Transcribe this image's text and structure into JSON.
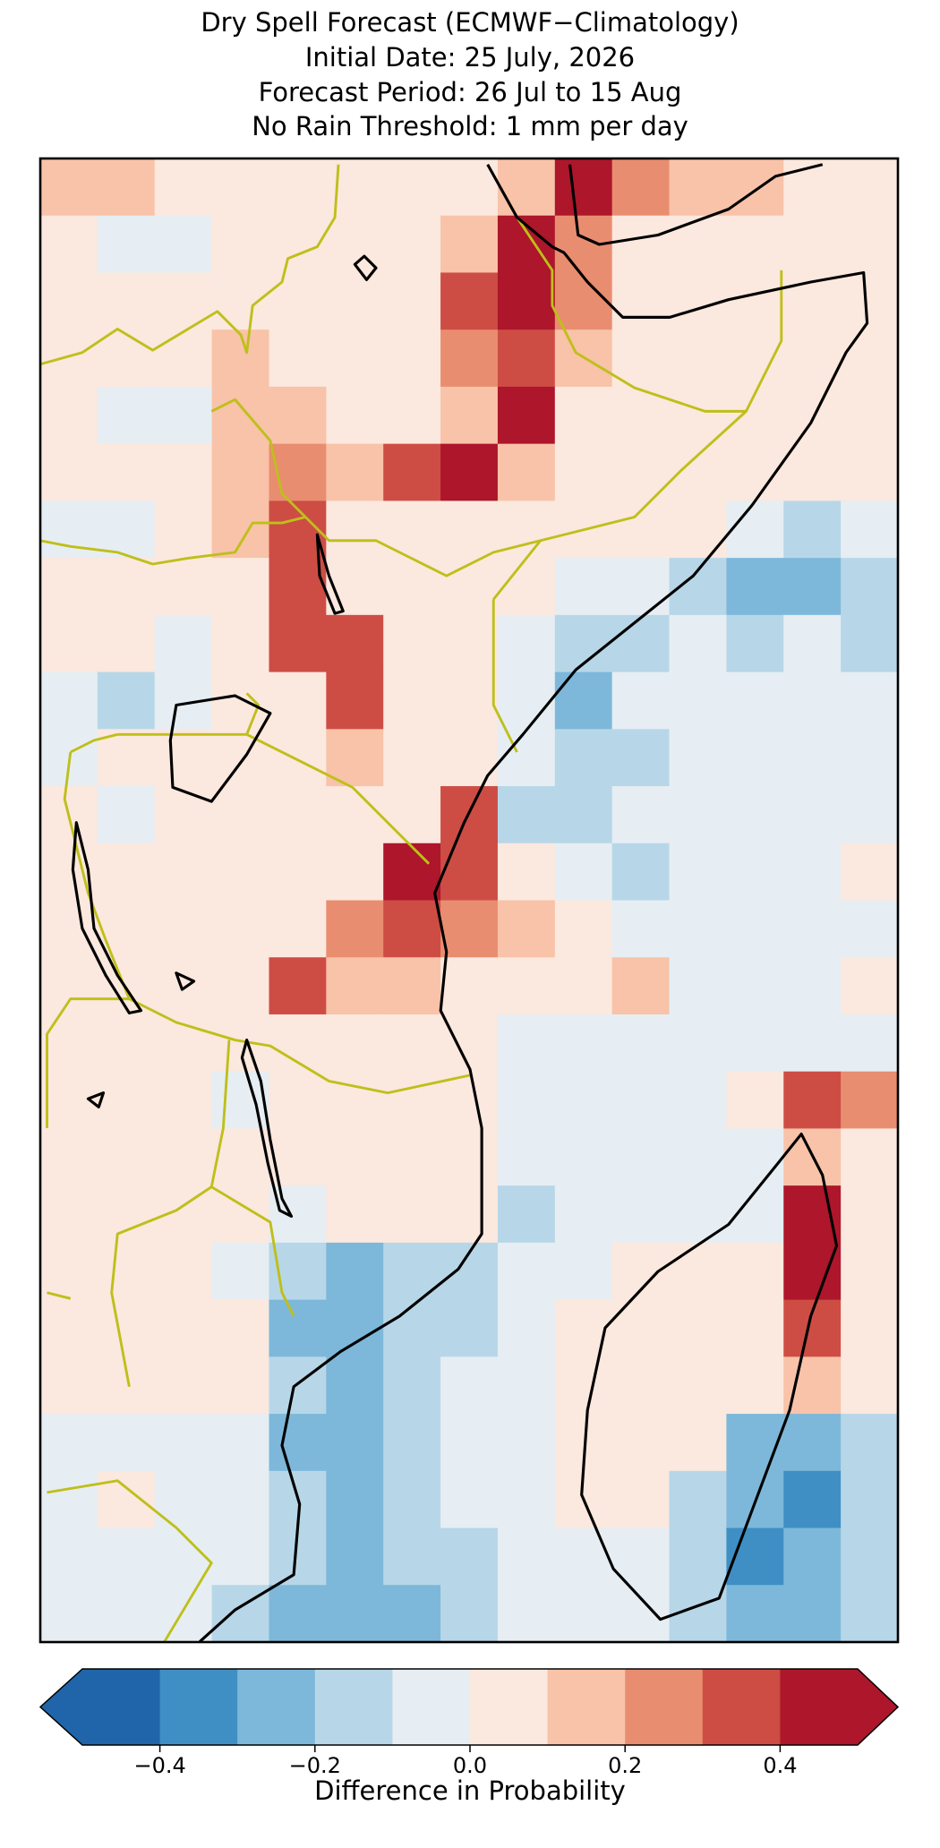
{
  "chart_data": {
    "type": "heatmap",
    "title": "Dry Spell Forecast (ECMWF−Climatology)",
    "subtitle": [
      "Initial Date: 25 July, 2026",
      "Forecast Period: 26 Jul to 15 Aug",
      "No Rain Threshold: 1 mm per day"
    ],
    "colorbar_label": "Difference in Probability",
    "extend": "both",
    "color_bounds": [
      -0.5,
      -0.4,
      -0.3,
      -0.2,
      -0.1,
      0,
      0.1,
      0.2,
      0.3,
      0.4,
      0.5
    ],
    "colors": [
      "#2065aa",
      "#3f8fc4",
      "#7db8da",
      "#b7d7e8",
      "#e6eef3",
      "#fbe8de",
      "#f8c3a8",
      "#e98d70",
      "#cd4d45",
      "#ad162b"
    ],
    "cticks": [
      {
        "value": -0.4,
        "label": "−0.4"
      },
      {
        "value": -0.2,
        "label": "−0.2"
      },
      {
        "value": 0,
        "label": "0.0"
      },
      0.2,
      0.4
    ],
    "values": [
      [
        0.15,
        0.15,
        0.05,
        0.05,
        0.05,
        0.05,
        0.05,
        0.05,
        0.15,
        0.45,
        0.25,
        0.15,
        0.15,
        0.05,
        0.05
      ],
      [
        0.05,
        -0.05,
        -0.05,
        0.05,
        0.05,
        0.05,
        0.05,
        0.15,
        0.45,
        0.25,
        0.05,
        0.05,
        0.05,
        0.05,
        0.05
      ],
      [
        0.05,
        0.05,
        0.05,
        0.05,
        0.05,
        0.05,
        0.05,
        0.35,
        0.45,
        0.25,
        0.05,
        0.05,
        0.05,
        0.05,
        0.05
      ],
      [
        0.05,
        0.05,
        0.05,
        0.15,
        0.05,
        0.05,
        0.05,
        0.25,
        0.35,
        0.15,
        0.05,
        0.05,
        0.05,
        0.05,
        0.05
      ],
      [
        0.05,
        -0.05,
        -0.05,
        0.15,
        0.15,
        0.05,
        0.05,
        0.15,
        0.45,
        0.05,
        0.05,
        0.05,
        0.05,
        0.05,
        0.05
      ],
      [
        0.05,
        0.05,
        0.05,
        0.15,
        0.25,
        0.15,
        0.35,
        0.45,
        0.15,
        0.05,
        0.05,
        0.05,
        0.05,
        0.05,
        0.05
      ],
      [
        -0.05,
        -0.05,
        0.05,
        0.15,
        0.35,
        0.05,
        0.05,
        0.05,
        0.05,
        0.05,
        0.05,
        0.05,
        -0.05,
        -0.15,
        -0.05
      ],
      [
        0.05,
        0.05,
        0.05,
        0.05,
        0.35,
        0.05,
        0.05,
        0.05,
        0.05,
        -0.05,
        -0.05,
        -0.15,
        -0.25,
        -0.25,
        -0.15
      ],
      [
        0.05,
        0.05,
        -0.05,
        0.05,
        0.35,
        0.35,
        0.05,
        0.05,
        -0.05,
        -0.15,
        -0.15,
        -0.05,
        -0.15,
        -0.05,
        -0.15
      ],
      [
        -0.05,
        -0.15,
        -0.05,
        0.05,
        0.05,
        0.35,
        0.05,
        0.05,
        -0.05,
        -0.25,
        -0.05,
        -0.05,
        -0.05,
        -0.05,
        -0.05
      ],
      [
        -0.05,
        0.05,
        0.05,
        0.05,
        0.05,
        0.15,
        0.05,
        0.05,
        -0.05,
        -0.15,
        -0.15,
        -0.05,
        -0.05,
        -0.05,
        -0.05
      ],
      [
        0.05,
        -0.05,
        0.05,
        0.05,
        0.05,
        0.05,
        0.05,
        0.35,
        -0.15,
        -0.15,
        -0.05,
        -0.05,
        -0.05,
        -0.05,
        -0.05
      ],
      [
        0.05,
        0.05,
        0.05,
        0.05,
        0.05,
        0.05,
        0.45,
        0.35,
        0.05,
        -0.05,
        -0.15,
        -0.05,
        -0.05,
        -0.05,
        0.05
      ],
      [
        0.05,
        0.05,
        0.05,
        0.05,
        0.05,
        0.25,
        0.35,
        0.25,
        0.15,
        0.05,
        -0.05,
        -0.05,
        -0.05,
        -0.05,
        -0.05
      ],
      [
        0.05,
        0.05,
        0.05,
        0.05,
        0.35,
        0.15,
        0.15,
        0.05,
        0.05,
        0.05,
        0.15,
        -0.05,
        -0.05,
        -0.05,
        0.05
      ],
      [
        0.05,
        0.05,
        0.05,
        0.05,
        0.05,
        0.05,
        0.05,
        0.05,
        -0.05,
        -0.05,
        -0.05,
        -0.05,
        -0.05,
        -0.05,
        -0.05
      ],
      [
        0.05,
        0.05,
        0.05,
        -0.05,
        0.05,
        0.05,
        0.05,
        0.05,
        -0.05,
        -0.05,
        -0.05,
        -0.05,
        0.05,
        0.35,
        0.25
      ],
      [
        0.05,
        0.05,
        0.05,
        0.05,
        0.05,
        0.05,
        0.05,
        0.05,
        -0.05,
        -0.05,
        -0.05,
        -0.05,
        -0.05,
        0.15,
        0.05
      ],
      [
        0.05,
        0.05,
        0.05,
        0.05,
        -0.05,
        0.05,
        0.05,
        0.05,
        -0.15,
        -0.05,
        -0.05,
        -0.05,
        -0.05,
        0.45,
        0.05
      ],
      [
        0.05,
        0.05,
        0.05,
        -0.05,
        -0.15,
        -0.25,
        -0.15,
        -0.15,
        -0.05,
        -0.05,
        0.05,
        0.05,
        0.05,
        0.45,
        0.05
      ],
      [
        0.05,
        0.05,
        0.05,
        0.05,
        -0.25,
        -0.25,
        -0.15,
        -0.15,
        -0.05,
        0.05,
        0.05,
        0.05,
        0.05,
        0.35,
        0.05
      ],
      [
        0.05,
        0.05,
        0.05,
        0.05,
        -0.15,
        -0.25,
        -0.15,
        -0.05,
        -0.05,
        0.05,
        0.05,
        0.05,
        0.05,
        0.15,
        0.05
      ],
      [
        -0.05,
        -0.05,
        -0.05,
        -0.05,
        -0.25,
        -0.25,
        -0.15,
        -0.05,
        -0.05,
        0.05,
        0.05,
        0.05,
        -0.25,
        -0.25,
        -0.15
      ],
      [
        -0.05,
        0.05,
        -0.05,
        -0.05,
        -0.15,
        -0.25,
        -0.15,
        -0.05,
        -0.05,
        0.05,
        0.05,
        -0.15,
        -0.25,
        -0.35,
        -0.15
      ],
      [
        -0.05,
        -0.05,
        -0.05,
        -0.05,
        -0.15,
        -0.25,
        -0.15,
        -0.15,
        -0.05,
        -0.05,
        -0.05,
        -0.15,
        -0.35,
        -0.25,
        -0.15
      ],
      [
        -0.05,
        -0.05,
        -0.05,
        -0.15,
        -0.25,
        -0.25,
        -0.25,
        -0.15,
        -0.05,
        -0.05,
        -0.05,
        -0.15,
        -0.25,
        -0.25,
        -0.15
      ]
    ]
  }
}
